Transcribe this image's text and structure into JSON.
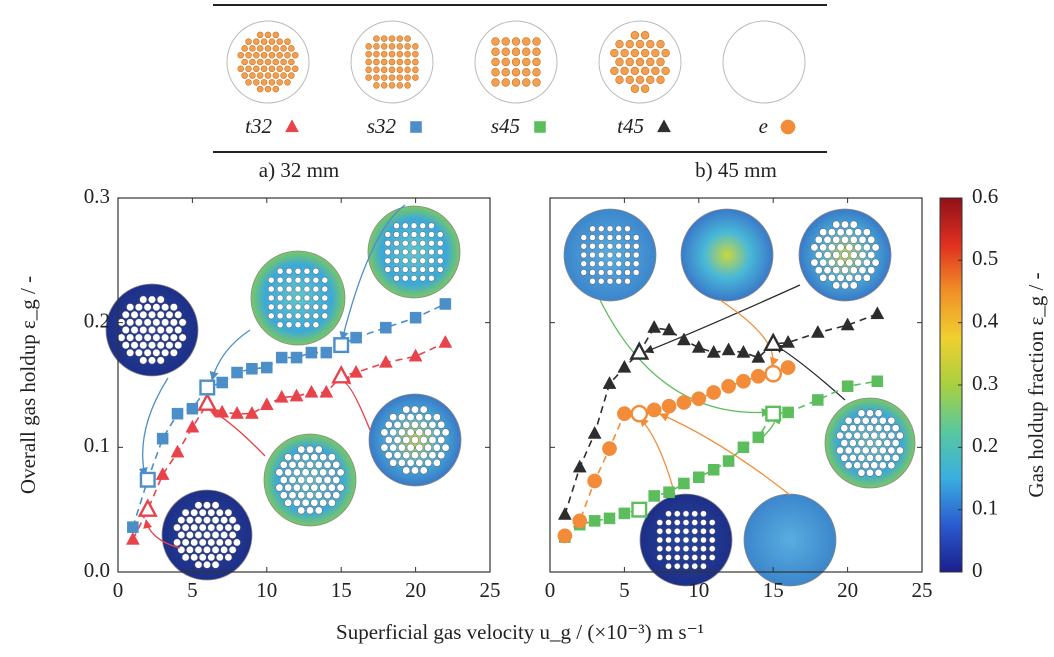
{
  "x_label": "Superficial gas velocity u_g / (×10⁻³) m s⁻¹",
  "chart_data": [
    {
      "type": "scatter",
      "title": "a) 32 mm",
      "ylabel": "Overall gas holdup ε_g / -",
      "xlim": [
        0,
        25
      ],
      "ylim": [
        0,
        0.3
      ],
      "xticks": [
        0,
        5,
        10,
        15,
        20,
        25
      ],
      "yticks": [
        {
          "value": 0,
          "label": "0.0"
        },
        0.1,
        0.2,
        0.3
      ],
      "series": [
        {
          "name": "t32",
          "color": "#e8434a",
          "marker": "triangle",
          "open_x": [
            2,
            6,
            15
          ],
          "x": [
            1,
            2,
            3,
            4,
            5,
            6,
            7,
            8,
            9,
            10,
            11,
            12,
            13,
            14,
            15,
            16,
            18,
            20,
            22
          ],
          "values": [
            0.026,
            0.05,
            0.078,
            0.096,
            0.116,
            0.135,
            0.128,
            0.127,
            0.127,
            0.134,
            0.14,
            0.141,
            0.144,
            0.144,
            0.157,
            0.16,
            0.168,
            0.173,
            0.184
          ]
        },
        {
          "name": "s32",
          "color": "#4b8ec8",
          "marker": "square",
          "open_x": [
            2,
            6,
            15
          ],
          "x": [
            1,
            2,
            3,
            4,
            5,
            6,
            7,
            8,
            9,
            10,
            11,
            12,
            13,
            14,
            15,
            16,
            18,
            20,
            22
          ],
          "values": [
            0.036,
            0.074,
            0.107,
            0.127,
            0.131,
            0.148,
            0.152,
            0.16,
            0.163,
            0.164,
            0.172,
            0.172,
            0.176,
            0.176,
            0.182,
            0.188,
            0.196,
            0.204,
            0.215
          ]
        }
      ]
    },
    {
      "type": "scatter",
      "title": "b) 45 mm",
      "xlim": [
        0,
        25
      ],
      "ylim": [
        0,
        0.3
      ],
      "xticks": [
        0,
        5,
        10,
        15,
        20,
        25
      ],
      "series": [
        {
          "name": "s45",
          "color": "#5cbd5c",
          "marker": "square",
          "open_x": [
            6,
            15
          ],
          "x": [
            1,
            2,
            3,
            4,
            5,
            6,
            7,
            8,
            9,
            10,
            11,
            12,
            13,
            14,
            15,
            16,
            18,
            20,
            22
          ],
          "values": [
            0.028,
            0.038,
            0.041,
            0.043,
            0.047,
            0.05,
            0.061,
            0.064,
            0.071,
            0.076,
            0.082,
            0.089,
            0.1,
            0.108,
            0.127,
            0.128,
            0.138,
            0.149,
            0.153
          ]
        },
        {
          "name": "t45",
          "color": "#2d2d2d",
          "marker": "triangle",
          "open_x": [
            6,
            15
          ],
          "x": [
            1,
            2,
            3,
            4,
            5,
            6,
            7,
            8,
            9,
            10,
            11,
            12,
            13,
            14,
            15,
            16,
            18,
            20,
            22
          ],
          "values": [
            0.046,
            0.084,
            0.111,
            0.151,
            0.164,
            0.176,
            0.196,
            0.194,
            0.186,
            0.18,
            0.176,
            0.178,
            0.176,
            0.172,
            0.183,
            0.184,
            0.192,
            0.198,
            0.207
          ]
        },
        {
          "name": "e",
          "color": "#f28c38",
          "marker": "circle",
          "open_x": [
            6,
            15
          ],
          "x": [
            1,
            2,
            3,
            4,
            5,
            6,
            7,
            8,
            9,
            10,
            11,
            12,
            13,
            14,
            15,
            16
          ],
          "values": [
            0.029,
            0.041,
            0.073,
            0.099,
            0.127,
            0.127,
            0.13,
            0.133,
            0.136,
            0.139,
            0.144,
            0.149,
            0.153,
            0.157,
            0.159,
            0.164
          ]
        }
      ]
    },
    {
      "type": "colorbar",
      "label": "Gas holdup fraction ε_g / -",
      "colormap": "jet",
      "lim": [
        0,
        0.6
      ],
      "ticks": [
        0,
        0.1,
        0.2,
        0.3,
        0.4,
        0.5,
        0.6
      ]
    }
  ]
}
